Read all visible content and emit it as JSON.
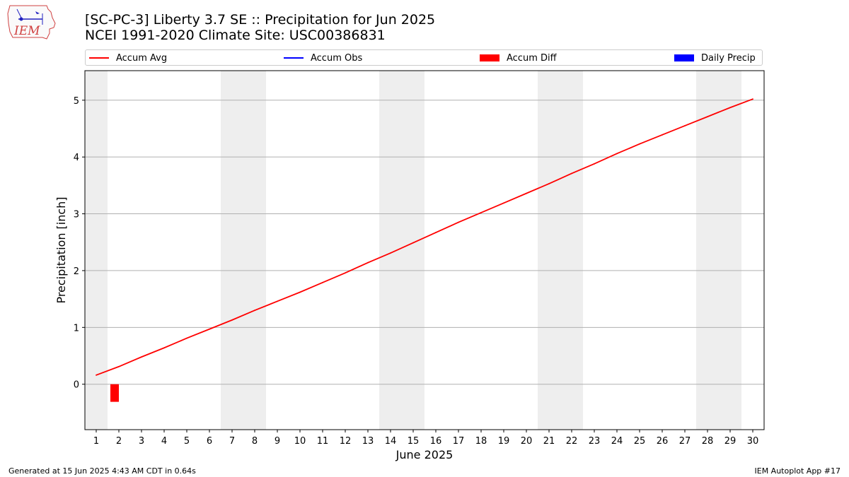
{
  "header": {
    "title_line1": "[SC-PC-3] Liberty 3.7 SE :: Precipitation for Jun 2025",
    "title_line2": "NCEI 1991-2020 Climate Site: USC00386831",
    "logo_text": "IEM"
  },
  "legend": {
    "items": [
      {
        "label": "Accum Avg",
        "color": "#ff0000",
        "kind": "line"
      },
      {
        "label": "Accum Obs",
        "color": "#0000ff",
        "kind": "line"
      },
      {
        "label": "Accum Diff",
        "color": "#ff0000",
        "kind": "box"
      },
      {
        "label": "Daily Precip",
        "color": "#0000ff",
        "kind": "box"
      }
    ]
  },
  "footer": {
    "left": "Generated at 15 Jun 2025 4:43 AM CDT in 0.64s",
    "right": "IEM Autoplot App #17"
  },
  "chart_data": {
    "type": "line",
    "xlabel": "June 2025",
    "ylabel": "Precipitation [inch]",
    "x": [
      1,
      2,
      3,
      4,
      5,
      6,
      7,
      8,
      9,
      10,
      11,
      12,
      13,
      14,
      15,
      16,
      17,
      18,
      19,
      20,
      21,
      22,
      23,
      24,
      25,
      26,
      27,
      28,
      29,
      30
    ],
    "xlim": [
      0.5,
      30.5
    ],
    "ylim": [
      -0.8,
      5.52
    ],
    "yticks": [
      0,
      1,
      2,
      3,
      4,
      5
    ],
    "grid": true,
    "weekend_shading": [
      [
        0.5,
        1.5
      ],
      [
        6.5,
        8.5
      ],
      [
        13.5,
        15.5
      ],
      [
        20.5,
        22.5
      ],
      [
        27.5,
        29.5
      ]
    ],
    "series": [
      {
        "name": "Accum Avg",
        "type": "line",
        "color": "#ff0000",
        "values": [
          0.16,
          0.31,
          0.48,
          0.64,
          0.81,
          0.97,
          1.13,
          1.3,
          1.46,
          1.62,
          1.79,
          1.96,
          2.14,
          2.31,
          2.49,
          2.67,
          2.85,
          3.02,
          3.19,
          3.36,
          3.53,
          3.71,
          3.88,
          4.06,
          4.23,
          4.39,
          4.55,
          4.71,
          4.87,
          5.02
        ]
      },
      {
        "name": "Accum Diff",
        "type": "bar",
        "color": "#ff0000",
        "x": [
          2
        ],
        "values": [
          -0.31
        ]
      }
    ]
  }
}
